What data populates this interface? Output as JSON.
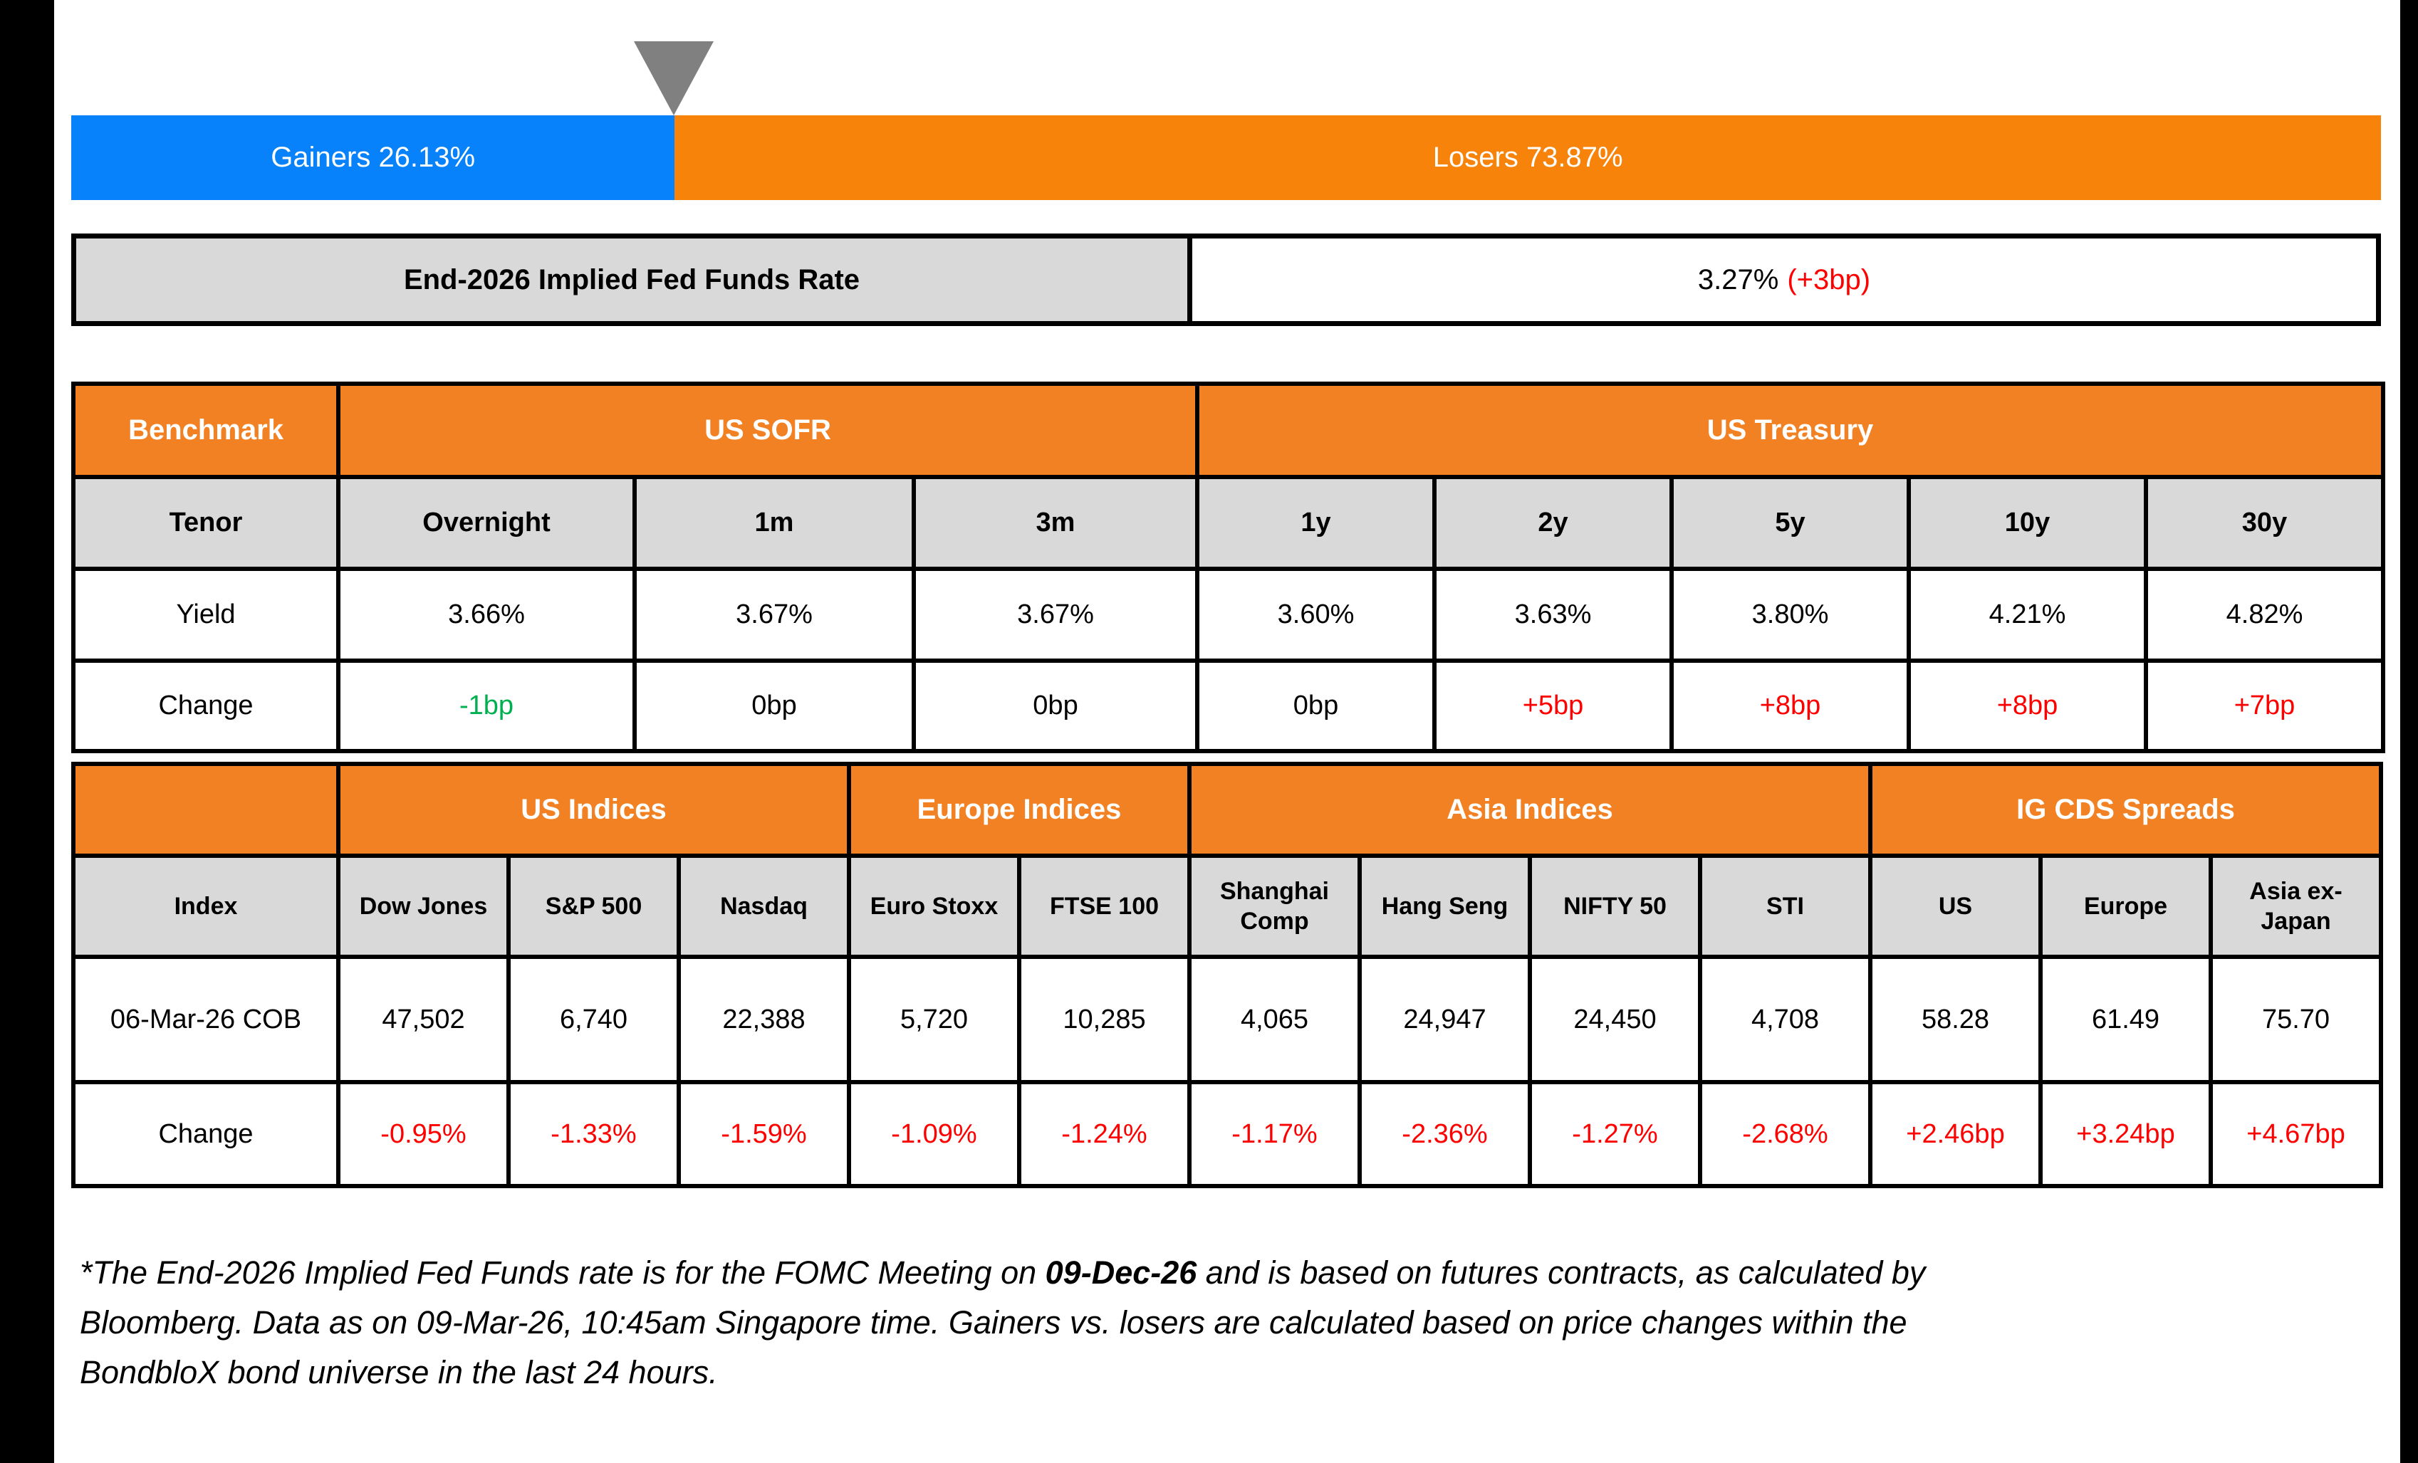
{
  "colors": {
    "gainers_blue": "#0782FA",
    "losers_orange": "#F7830A",
    "header_orange": "#F28123",
    "header_gray": "#D9D9D9",
    "positive_green": "#00B050",
    "negative_red": "#FF0000",
    "neutral_black": "#000000",
    "marker_gray": "#808080",
    "edge_black": "#000000"
  },
  "gainers_losers": {
    "gainers_label": "Gainers 26.13%",
    "losers_label": "Losers 73.87%",
    "gainers_pct": 26.13,
    "losers_pct": 73.87
  },
  "fed_funds": {
    "label": "End-2026 Implied Fed Funds Rate",
    "value": "3.27%",
    "change": "(+3bp)"
  },
  "benchmark_table": {
    "corner_label": "Benchmark",
    "groups": [
      {
        "label": "US SOFR",
        "span": 3
      },
      {
        "label": "US Treasury",
        "span": 5
      }
    ],
    "tenor_label": "Tenor",
    "tenors": [
      "Overnight",
      "1m",
      "3m",
      "1y",
      "2y",
      "5y",
      "10y",
      "30y"
    ],
    "yield_label": "Yield",
    "yields": [
      "3.66%",
      "3.67%",
      "3.67%",
      "3.60%",
      "3.63%",
      "3.80%",
      "4.21%",
      "4.82%"
    ],
    "change_label": "Change",
    "changes": [
      {
        "text": "-1bp",
        "color": "#00B050"
      },
      {
        "text": "0bp",
        "color": "#000000"
      },
      {
        "text": "0bp",
        "color": "#000000"
      },
      {
        "text": "0bp",
        "color": "#000000"
      },
      {
        "text": "+5bp",
        "color": "#FF0000"
      },
      {
        "text": "+8bp",
        "color": "#FF0000"
      },
      {
        "text": "+8bp",
        "color": "#FF0000"
      },
      {
        "text": "+7bp",
        "color": "#FF0000"
      }
    ]
  },
  "indices_table": {
    "corner_label": "",
    "groups": [
      {
        "label": "US Indices",
        "span": 3
      },
      {
        "label": "Europe Indices",
        "span": 2
      },
      {
        "label": "Asia Indices",
        "span": 4
      },
      {
        "label": "IG CDS Spreads",
        "span": 3
      }
    ],
    "index_label": "Index",
    "index_names": [
      "Dow Jones",
      "S&P 500",
      "Nasdaq",
      "Euro Stoxx",
      "FTSE 100",
      "Shanghai Comp",
      "Hang Seng",
      "NIFTY 50",
      "STI",
      "US",
      "Europe",
      "Asia ex-Japan"
    ],
    "date_label": "06-Mar-26 COB",
    "values": [
      "47,502",
      "6,740",
      "22,388",
      "5,720",
      "10,285",
      "4,065",
      "24,947",
      "24,450",
      "4,708",
      "58.28",
      "61.49",
      "75.70"
    ],
    "change_label": "Change",
    "changes": [
      {
        "text": "-0.95%",
        "color": "#FF0000"
      },
      {
        "text": "-1.33%",
        "color": "#FF0000"
      },
      {
        "text": "-1.59%",
        "color": "#FF0000"
      },
      {
        "text": "-1.09%",
        "color": "#FF0000"
      },
      {
        "text": "-1.24%",
        "color": "#FF0000"
      },
      {
        "text": "-1.17%",
        "color": "#FF0000"
      },
      {
        "text": "-2.36%",
        "color": "#FF0000"
      },
      {
        "text": "-1.27%",
        "color": "#FF0000"
      },
      {
        "text": "-2.68%",
        "color": "#FF0000"
      },
      {
        "text": "+2.46bp",
        "color": "#FF0000"
      },
      {
        "text": "+3.24bp",
        "color": "#FF0000"
      },
      {
        "text": "+4.67bp",
        "color": "#FF0000"
      }
    ]
  },
  "footnote": {
    "line1_pre": "*The End-2026 Implied Fed Funds rate is for the FOMC Meeting on ",
    "line1_bold": "09-Dec-26",
    "line1_post": " and is based on futures contracts, as calculated by",
    "line2": "Bloomberg. Data as on 09-Mar-26, 10:45am Singapore time. Gainers vs. losers are calculated based on price changes within the",
    "line3": "BondbloX bond universe in the last 24 hours."
  },
  "chart_data": [
    {
      "type": "bar",
      "title": "Gainers vs Losers (% of BondbloX bond universe, last 24 hours)",
      "categories": [
        "Gainers",
        "Losers"
      ],
      "values": [
        26.13,
        73.87
      ],
      "orientation": "horizontal-stacked",
      "colors": [
        "#0782FA",
        "#F7830A"
      ],
      "xlabel": "",
      "ylabel": "",
      "xlim": [
        0,
        100
      ],
      "annotations": [
        "gray down-pointing marker at 26.13% boundary"
      ]
    },
    {
      "type": "table",
      "title": "Benchmark — US SOFR / US Treasury",
      "columns": [
        "Tenor",
        "Overnight",
        "1m",
        "3m",
        "1y",
        "2y",
        "5y",
        "10y",
        "30y"
      ],
      "rows": [
        [
          "Yield",
          "3.66%",
          "3.67%",
          "3.67%",
          "3.60%",
          "3.63%",
          "3.80%",
          "4.21%",
          "4.82%"
        ],
        [
          "Change",
          "-1bp",
          "0bp",
          "0bp",
          "0bp",
          "+5bp",
          "+8bp",
          "+8bp",
          "+7bp"
        ]
      ]
    },
    {
      "type": "table",
      "title": "US / Europe / Asia Indices and IG CDS Spreads",
      "columns": [
        "Index",
        "Dow Jones",
        "S&P 500",
        "Nasdaq",
        "Euro Stoxx",
        "FTSE 100",
        "Shanghai Comp",
        "Hang Seng",
        "NIFTY 50",
        "STI",
        "US",
        "Europe",
        "Asia ex-Japan"
      ],
      "rows": [
        [
          "06-Mar-26 COB",
          "47,502",
          "6,740",
          "22,388",
          "5,720",
          "10,285",
          "4,065",
          "24,947",
          "24,450",
          "4,708",
          "58.28",
          "61.49",
          "75.70"
        ],
        [
          "Change",
          "-0.95%",
          "-1.33%",
          "-1.59%",
          "-1.09%",
          "-1.24%",
          "-1.17%",
          "-2.36%",
          "-1.27%",
          "-2.68%",
          "+2.46bp",
          "+3.24bp",
          "+4.67bp"
        ]
      ]
    },
    {
      "type": "table",
      "title": "End-2026 Implied Fed Funds Rate",
      "columns": [
        "End-2026 Implied Fed Funds Rate"
      ],
      "rows": [
        [
          "3.27% (+3bp)"
        ]
      ]
    }
  ]
}
